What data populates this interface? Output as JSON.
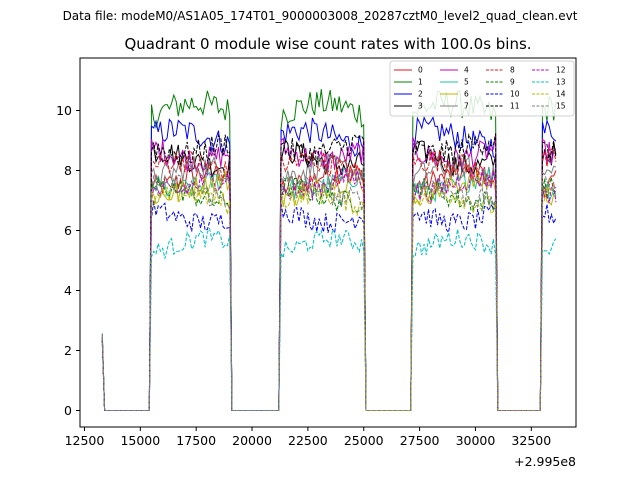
{
  "chart_data": {
    "type": "line",
    "suptitle": "Data file: modeM0/AS1A05_174T01_9000003008_20287cztM0_level2_quad_clean.evt",
    "title": "Quadrant 0 module wise count rates with 100.0s bins.",
    "xlabel": "",
    "ylabel": "",
    "x_offset_label": "+2.995e8",
    "xlim": [
      12300,
      34500
    ],
    "ylim": [
      -0.55,
      11.75
    ],
    "xticks": [
      12500,
      15000,
      17500,
      20000,
      22500,
      25000,
      27500,
      30000,
      32500
    ],
    "xtick_labels": [
      "12500",
      "15000",
      "17500",
      "20000",
      "22500",
      "25000",
      "27500",
      "30000",
      "32500"
    ],
    "yticks": [
      0,
      2,
      4,
      6,
      8,
      10
    ],
    "ytick_labels": [
      "0",
      "2",
      "4",
      "6",
      "8",
      "10"
    ],
    "grid": false,
    "legend_position": "top-right",
    "legend_columns": 4,
    "bin_seconds": 100,
    "x_start": 13300,
    "x_end": 33600,
    "on_intervals": [
      [
        15500,
        19000
      ],
      [
        21300,
        25000
      ],
      [
        27200,
        30900
      ],
      [
        33000,
        33600
      ]
    ],
    "initial_level": 2.4,
    "series": [
      {
        "name": "0",
        "color": "#e31a1c",
        "dash": "solid",
        "mean": 7.7
      },
      {
        "name": "1",
        "color": "#008000",
        "dash": "solid",
        "mean": 10.0
      },
      {
        "name": "2",
        "color": "#0000ff",
        "dash": "solid",
        "mean": 9.1
      },
      {
        "name": "3",
        "color": "#000000",
        "dash": "solid",
        "mean": 8.4
      },
      {
        "name": "4",
        "color": "#bf00bf",
        "dash": "solid",
        "mean": 8.6
      },
      {
        "name": "5",
        "color": "#20c0a0",
        "dash": "solid",
        "mean": 7.6
      },
      {
        "name": "6",
        "color": "#b8b800",
        "dash": "solid",
        "mean": 7.4
      },
      {
        "name": "7",
        "color": "#808080",
        "dash": "solid",
        "mean": 7.9
      },
      {
        "name": "8",
        "color": "#e31a1c",
        "dash": "dashed",
        "mean": 8.1
      },
      {
        "name": "9",
        "color": "#008000",
        "dash": "dashed",
        "mean": 7.2
      },
      {
        "name": "10",
        "color": "#0000ff",
        "dash": "dashed",
        "mean": 6.5
      },
      {
        "name": "11",
        "color": "#000000",
        "dash": "dashed",
        "mean": 8.8
      },
      {
        "name": "12",
        "color": "#bf00bf",
        "dash": "dashed",
        "mean": 7.5
      },
      {
        "name": "13",
        "color": "#00bfbf",
        "dash": "dashed",
        "mean": 5.5
      },
      {
        "name": "14",
        "color": "#b8b800",
        "dash": "dashed",
        "mean": 7.0
      },
      {
        "name": "15",
        "color": "#808080",
        "dash": "dashed",
        "mean": 7.3
      }
    ]
  }
}
